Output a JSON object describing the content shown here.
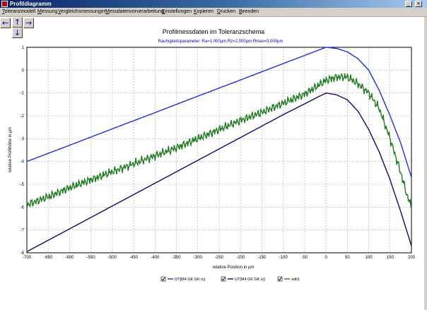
{
  "window": {
    "title": "Profildiagramm",
    "min_glyph": "_",
    "close_glyph": "×"
  },
  "menu": [
    "Toleranzmodell",
    "Messung",
    "Vergleichsmessungen",
    "Messdatenvorverarbeitung",
    "Einstellungen",
    "Kopieren",
    "Drucken",
    "Beenden"
  ],
  "nav": {
    "left": "←",
    "up": "↑",
    "down": "↓",
    "right": "→"
  },
  "colors": {
    "ot": "#1a2ee0",
    "ut": "#0a0a6e",
    "edit": "#1e7a1e",
    "grid": "#a8a8a8"
  },
  "chart_data": {
    "type": "line",
    "title": "Profilmessdaten im Toleranzschema",
    "subtitle": "Rauhigkeitsparameter:  Ra=1.000µm  Rz=2.000µm  Rmax=3.000µm",
    "xlabel": "relative Position in µm",
    "ylabel": "relative Profilhöhe in µm",
    "xlim": [
      -700,
      200
    ],
    "ylim": [
      -8,
      1
    ],
    "xticks": [
      -700,
      -650,
      -600,
      -550,
      -500,
      -450,
      -400,
      -350,
      -300,
      -250,
      -200,
      -150,
      -100,
      -50,
      0,
      50,
      100,
      150,
      200
    ],
    "yticks": [
      1,
      0,
      -1,
      -2,
      -3,
      -4,
      -5,
      -6,
      -7,
      -8
    ],
    "grid": true,
    "series": [
      {
        "name": "OT[M4 GK GK io]",
        "color": "#1a2ee0",
        "checked": true,
        "x": [
          -700,
          -600,
          -500,
          -400,
          -300,
          -200,
          -100,
          0,
          25,
          50,
          75,
          100,
          125,
          150,
          175,
          200
        ],
        "y": [
          -4.0,
          -3.29,
          -2.57,
          -1.86,
          -1.14,
          -0.43,
          0.29,
          1.0,
          0.95,
          0.8,
          0.5,
          0.0,
          -0.9,
          -2.0,
          -3.2,
          -4.7
        ]
      },
      {
        "name": "UT[M4 GK GK io]",
        "color": "#0a0a6e",
        "checked": true,
        "x": [
          -700,
          -600,
          -500,
          -400,
          -300,
          -200,
          -100,
          0,
          25,
          50,
          75,
          100,
          125,
          150,
          175,
          200
        ],
        "y": [
          -7.95,
          -6.95,
          -5.95,
          -4.95,
          -3.95,
          -2.95,
          -1.95,
          -1.0,
          -1.08,
          -1.3,
          -1.8,
          -2.6,
          -3.6,
          -4.8,
          -6.2,
          -7.7
        ]
      },
      {
        "name": "edit1",
        "color": "#1e7a1e",
        "checked": true,
        "x": [
          -700,
          -650,
          -600,
          -550,
          -500,
          -450,
          -400,
          -350,
          -300,
          -250,
          -200,
          -150,
          -100,
          -50,
          0,
          25,
          50,
          75,
          100,
          125,
          150,
          175,
          190,
          200
        ],
        "y": [
          -5.9,
          -5.55,
          -5.15,
          -4.8,
          -4.45,
          -4.1,
          -3.75,
          -3.4,
          -3.0,
          -2.6,
          -2.2,
          -1.85,
          -1.45,
          -1.05,
          -0.45,
          -0.3,
          -0.3,
          -0.6,
          -1.0,
          -1.7,
          -3.0,
          -4.5,
          -5.5,
          -6.0
        ]
      }
    ]
  }
}
